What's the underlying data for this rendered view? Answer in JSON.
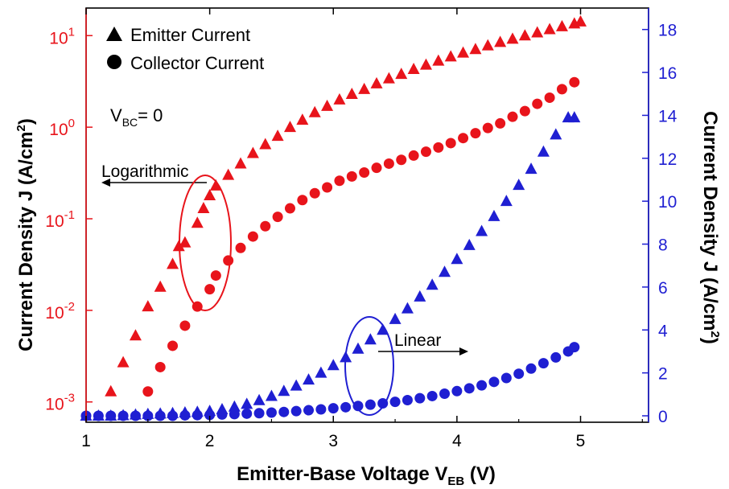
{
  "chart_data": {
    "type": "scatter",
    "xlabel": "Emitter-Base Voltage V",
    "xlabel_sub": "EB",
    "xlabel_unit": "(V)",
    "ylabel_left": "Current Density J (A/cm",
    "ylabel_left_sup": "2",
    "ylabel_left_close": ")",
    "ylabel_right": "Current Density J (A/cm",
    "ylabel_right_sup": "2",
    "ylabel_right_close": ")",
    "xlim": [
      1.0,
      5.55
    ],
    "ylim_left_log": [
      0.0006,
      20
    ],
    "ylim_right": [
      -0.3,
      19
    ],
    "left_axis_color": "#e8141b",
    "right_axis_color": "#1f1fd2",
    "x_ticks": [
      1,
      2,
      3,
      4,
      5
    ],
    "x_tick_labels": [
      "1",
      "2",
      "3",
      "4",
      "5"
    ],
    "left_ticks": [
      0.001,
      0.01,
      0.1,
      1,
      10
    ],
    "left_tick_base": [
      "10",
      "10",
      "10",
      "10",
      "10"
    ],
    "left_tick_exp": [
      "-3",
      "-2",
      "-1",
      "0",
      "1"
    ],
    "right_ticks": [
      0,
      2,
      4,
      6,
      8,
      10,
      12,
      14,
      16,
      18
    ],
    "right_tick_labels": [
      "0",
      "2",
      "4",
      "6",
      "8",
      "10",
      "12",
      "14",
      "16",
      "18"
    ],
    "legend": {
      "position": "top-left",
      "items": [
        {
          "marker": "triangle",
          "label": "Emitter Current"
        },
        {
          "marker": "circle",
          "label": "Collector Current"
        }
      ]
    },
    "annotations": {
      "vbc_main": "V",
      "vbc_sub": "BC",
      "vbc_rest": "= 0",
      "log_label": "Logarithmic",
      "lin_label": "Linear"
    },
    "series": [
      {
        "name": "Emitter Current",
        "axis": "left",
        "marker": "triangle",
        "color": "#e8141b",
        "x": [
          1.2,
          1.3,
          1.4,
          1.5,
          1.6,
          1.7,
          1.75,
          1.8,
          1.9,
          1.95,
          2.0,
          2.05,
          2.15,
          2.25,
          2.35,
          2.45,
          2.55,
          2.65,
          2.75,
          2.85,
          2.95,
          3.05,
          3.15,
          3.25,
          3.35,
          3.45,
          3.55,
          3.65,
          3.75,
          3.85,
          3.95,
          4.05,
          4.15,
          4.25,
          4.35,
          4.45,
          4.55,
          4.65,
          4.75,
          4.85,
          4.95,
          5.0
        ],
        "y": [
          0.0013,
          0.0027,
          0.0053,
          0.011,
          0.018,
          0.032,
          0.05,
          0.055,
          0.09,
          0.13,
          0.18,
          0.23,
          0.3,
          0.4,
          0.52,
          0.65,
          0.8,
          1.0,
          1.2,
          1.45,
          1.7,
          2.0,
          2.3,
          2.6,
          3.0,
          3.4,
          3.8,
          4.3,
          4.8,
          5.3,
          5.9,
          6.5,
          7.1,
          7.8,
          8.5,
          9.2,
          10.0,
          10.8,
          11.7,
          12.6,
          13.5,
          14.2
        ]
      },
      {
        "name": "Collector Current",
        "axis": "left",
        "marker": "circle",
        "color": "#e8141b",
        "x": [
          1.5,
          1.6,
          1.7,
          1.8,
          1.9,
          2.0,
          2.05,
          2.15,
          2.25,
          2.35,
          2.45,
          2.55,
          2.65,
          2.75,
          2.85,
          2.95,
          3.05,
          3.15,
          3.25,
          3.35,
          3.45,
          3.55,
          3.65,
          3.75,
          3.85,
          3.95,
          4.05,
          4.15,
          4.25,
          4.35,
          4.45,
          4.55,
          4.65,
          4.75,
          4.85,
          4.95
        ],
        "y": [
          0.0013,
          0.0024,
          0.0041,
          0.0068,
          0.011,
          0.017,
          0.024,
          0.035,
          0.048,
          0.064,
          0.083,
          0.105,
          0.13,
          0.16,
          0.19,
          0.22,
          0.26,
          0.29,
          0.32,
          0.36,
          0.4,
          0.44,
          0.49,
          0.54,
          0.6,
          0.67,
          0.76,
          0.86,
          0.98,
          1.1,
          1.3,
          1.5,
          1.8,
          2.1,
          2.6,
          3.1
        ]
      },
      {
        "name": "Emitter Current",
        "axis": "right",
        "marker": "triangle",
        "color": "#1f1fd2",
        "x": [
          1.0,
          1.1,
          1.2,
          1.3,
          1.4,
          1.5,
          1.6,
          1.7,
          1.8,
          1.9,
          2.0,
          2.1,
          2.2,
          2.3,
          2.4,
          2.5,
          2.6,
          2.7,
          2.8,
          2.9,
          3.0,
          3.1,
          3.2,
          3.3,
          3.4,
          3.5,
          3.6,
          3.7,
          3.8,
          3.9,
          4.0,
          4.1,
          4.2,
          4.3,
          4.4,
          4.5,
          4.6,
          4.7,
          4.8,
          4.9,
          4.95
        ],
        "y": [
          0.0,
          0.0,
          0.0,
          0.02,
          0.05,
          0.08,
          0.1,
          0.12,
          0.15,
          0.18,
          0.22,
          0.3,
          0.42,
          0.55,
          0.72,
          0.92,
          1.15,
          1.4,
          1.68,
          2.0,
          2.35,
          2.72,
          3.12,
          3.55,
          4.0,
          4.5,
          5.0,
          5.55,
          6.1,
          6.7,
          7.3,
          7.95,
          8.6,
          9.3,
          10.0,
          10.75,
          11.5,
          12.3,
          13.1,
          13.9,
          13.9
        ]
      },
      {
        "name": "Collector Current",
        "axis": "right",
        "marker": "circle",
        "color": "#1f1fd2",
        "x": [
          1.0,
          1.1,
          1.2,
          1.3,
          1.4,
          1.5,
          1.6,
          1.7,
          1.8,
          1.9,
          2.0,
          2.1,
          2.2,
          2.3,
          2.4,
          2.5,
          2.6,
          2.7,
          2.8,
          2.9,
          3.0,
          3.1,
          3.2,
          3.3,
          3.4,
          3.5,
          3.6,
          3.7,
          3.8,
          3.9,
          4.0,
          4.1,
          4.2,
          4.3,
          4.4,
          4.5,
          4.6,
          4.7,
          4.8,
          4.9,
          4.95
        ],
        "y": [
          0.0,
          0.0,
          0.0,
          0.0,
          0.0,
          0.0,
          0.0,
          0.0,
          0.02,
          0.03,
          0.04,
          0.06,
          0.08,
          0.1,
          0.12,
          0.15,
          0.18,
          0.22,
          0.26,
          0.3,
          0.35,
          0.4,
          0.46,
          0.52,
          0.58,
          0.65,
          0.73,
          0.82,
          0.92,
          1.03,
          1.15,
          1.28,
          1.42,
          1.58,
          1.76,
          1.96,
          2.2,
          2.45,
          2.72,
          3.0,
          3.2
        ]
      }
    ]
  }
}
